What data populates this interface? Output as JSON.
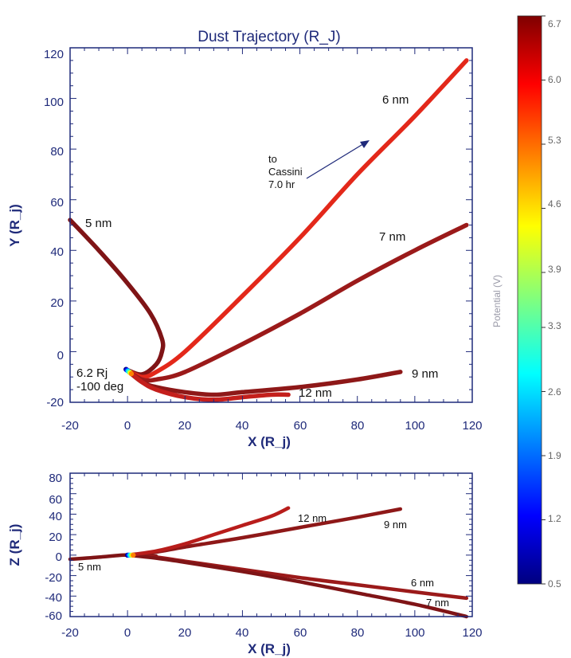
{
  "chart_data": [
    {
      "type": "line",
      "title": "Dust Trajectory (R_J)",
      "xlabel": "X (R_j)",
      "ylabel": "Y (R_j)",
      "xlim": [
        -20,
        120
      ],
      "ylim": [
        -20,
        120
      ],
      "xticks": [
        "-20",
        "0",
        "20",
        "40",
        "60",
        "80",
        "100",
        "120"
      ],
      "yticks": [
        "-20",
        "0",
        "20",
        "40",
        "60",
        "80",
        "100",
        "120"
      ],
      "series": [
        {
          "name": "5 nm",
          "color": "#7f1416",
          "x": [
            -0.5,
            5,
            10,
            12,
            12,
            8,
            0,
            -10,
            -20
          ],
          "y": [
            -7,
            -9,
            -5,
            0,
            5,
            15,
            27,
            40,
            52
          ]
        },
        {
          "name": "6 nm",
          "color": "#e3281a",
          "x": [
            -0.5,
            5,
            10,
            20,
            40,
            60,
            80,
            100,
            118
          ],
          "y": [
            -7,
            -10,
            -8,
            0,
            22,
            45,
            70,
            93,
            115
          ]
        },
        {
          "name": "7 nm",
          "color": "#9b1a1a",
          "x": [
            -0.5,
            5,
            10,
            20,
            40,
            60,
            80,
            100,
            118
          ],
          "y": [
            -7,
            -11,
            -11,
            -8,
            3,
            15,
            28,
            40,
            50
          ]
        },
        {
          "name": "9 nm",
          "color": "#8e1818",
          "x": [
            -0.5,
            5,
            10,
            20,
            30,
            40,
            60,
            80,
            95
          ],
          "y": [
            -7,
            -12,
            -14,
            -16,
            -17,
            -16,
            -14,
            -11,
            -8
          ]
        },
        {
          "name": "12 nm",
          "color": "#c41f1c",
          "x": [
            -0.5,
            5,
            10,
            20,
            30,
            40,
            50,
            56
          ],
          "y": [
            -7,
            -12,
            -15,
            -18,
            -19,
            -18,
            -17,
            -17
          ]
        }
      ],
      "annotations": [
        {
          "text": "6 nm"
        },
        {
          "text": "7 nm"
        },
        {
          "text": "5 nm"
        },
        {
          "text": "9 nm"
        },
        {
          "text": "12 nm"
        },
        {
          "text": "6.2 Rj"
        },
        {
          "text": "-100 deg"
        },
        {
          "text": "to"
        },
        {
          "text": "Cassini"
        },
        {
          "text": "7.0 hr"
        }
      ],
      "grid": false
    },
    {
      "type": "line",
      "xlabel": "X (R_j)",
      "ylabel": "Z (R_j)",
      "xlim": [
        -20,
        120
      ],
      "ylim": [
        -60,
        80
      ],
      "xticks": [
        "-20",
        "0",
        "20",
        "40",
        "60",
        "80",
        "100",
        "120"
      ],
      "yticks": [
        "80",
        "60",
        "40",
        "20",
        "0",
        "-20",
        "-40",
        "-60"
      ],
      "series": [
        {
          "name": "5 nm",
          "color": "#7f1416",
          "x": [
            -20,
            -10,
            -2,
            0,
            5,
            10
          ],
          "y": [
            -4,
            -2,
            0,
            0,
            0,
            -1
          ]
        },
        {
          "name": "6 nm",
          "color": "#9b1a1a",
          "x": [
            0,
            10,
            20,
            40,
            60,
            80,
            100,
            118
          ],
          "y": [
            0,
            -2,
            -6,
            -14,
            -22,
            -29,
            -36,
            -42
          ]
        },
        {
          "name": "7 nm",
          "color": "#7f1416",
          "x": [
            0,
            10,
            20,
            40,
            60,
            80,
            100,
            118
          ],
          "y": [
            0,
            -3,
            -7,
            -16,
            -26,
            -37,
            -48,
            -60
          ]
        },
        {
          "name": "9 nm",
          "color": "#8e1818",
          "x": [
            0,
            10,
            20,
            40,
            60,
            80,
            95
          ],
          "y": [
            0,
            3,
            8,
            17,
            27,
            37,
            45
          ]
        },
        {
          "name": "12 nm",
          "color": "#b81d1b",
          "x": [
            0,
            10,
            20,
            30,
            40,
            50,
            56
          ],
          "y": [
            0,
            4,
            11,
            20,
            29,
            38,
            46
          ]
        }
      ],
      "annotations": [
        {
          "text": "12 nm"
        },
        {
          "text": "9 nm"
        },
        {
          "text": "5 nm"
        },
        {
          "text": "6 nm"
        },
        {
          "text": "7 nm"
        }
      ],
      "grid": false
    }
  ],
  "colorbar": {
    "label": "Potential (V)",
    "ticks": [
      "6.7",
      "6.0",
      "5.3",
      "4.6",
      "3.9",
      "3.3",
      "2.6",
      "1.9",
      "1.2",
      "0.5"
    ],
    "range": [
      0.5,
      6.7
    ]
  }
}
